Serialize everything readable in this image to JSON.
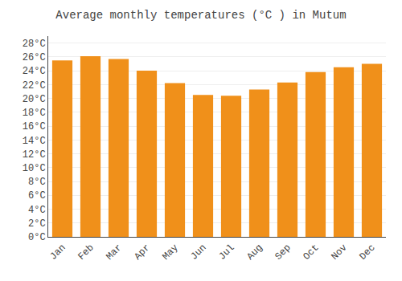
{
  "chart_data": {
    "type": "bar",
    "title": "Average monthly temperatures (°C ) in Mutum",
    "categories": [
      "Jan",
      "Feb",
      "Mar",
      "Apr",
      "May",
      "Jun",
      "Jul",
      "Aug",
      "Sep",
      "Oct",
      "Nov",
      "Dec"
    ],
    "values": [
      25.5,
      26.1,
      25.7,
      24.0,
      22.2,
      20.5,
      20.4,
      21.3,
      22.3,
      23.8,
      24.5,
      25.0
    ],
    "color": "#F0901A",
    "ylim": [
      0,
      29
    ],
    "yticks": [
      {
        "value": 0,
        "label": "0°C"
      },
      {
        "value": 2,
        "label": "2°C"
      },
      {
        "value": 4,
        "label": "4°C"
      },
      {
        "value": 6,
        "label": "6°C"
      },
      {
        "value": 8,
        "label": "8°C"
      },
      {
        "value": 10,
        "label": "10°C"
      },
      {
        "value": 12,
        "label": "12°C"
      },
      {
        "value": 14,
        "label": "14°C"
      },
      {
        "value": 16,
        "label": "16°C"
      },
      {
        "value": 18,
        "label": "18°C"
      },
      {
        "value": 20,
        "label": "20°C"
      },
      {
        "value": 22,
        "label": "22°C"
      },
      {
        "value": 24,
        "label": "24°C"
      },
      {
        "value": 26,
        "label": "26°C"
      },
      {
        "value": 28,
        "label": "28°C"
      }
    ],
    "grid": true
  }
}
